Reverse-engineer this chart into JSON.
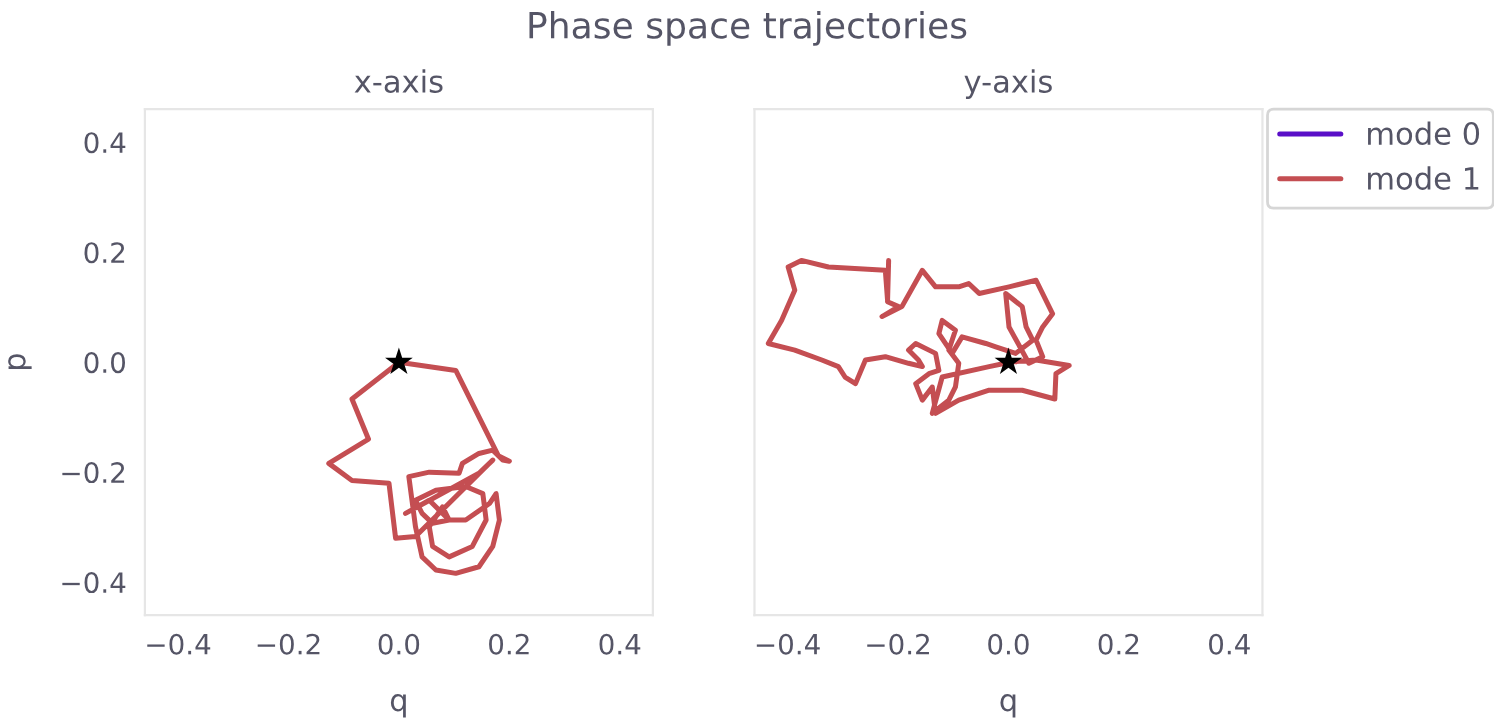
{
  "chart_data": [
    {
      "type": "line",
      "title": "x-axis",
      "xlabel": "q",
      "ylabel": "p",
      "annotations": [
        "Phase space trajectories"
      ],
      "grid": false,
      "xlim": [
        -0.46,
        0.46
      ],
      "ylim": [
        -0.46,
        0.46
      ],
      "xticks": [
        {
          "value": -0.4,
          "label": "−0.4"
        },
        {
          "value": -0.2,
          "label": "−0.2"
        },
        {
          "value": 0,
          "label": "0.0"
        },
        {
          "value": 0.2,
          "label": "0.2"
        },
        {
          "value": 0.4,
          "label": "0.4"
        }
      ],
      "yticks": [
        {
          "value": -0.4,
          "label": "−0.4"
        },
        {
          "value": -0.2,
          "label": "−0.2"
        },
        {
          "value": 0,
          "label": "0.0"
        },
        {
          "value": 0.2,
          "label": "0.2"
        },
        {
          "value": 0.4,
          "label": "0.4"
        }
      ],
      "series": [
        {
          "color": "#c44e52",
          "x": [
            0,
            0.103,
            0.18,
            0.2,
            0.188,
            0.17,
            0.145,
            0.115,
            0.109,
            0.055,
            0.018,
            0.03,
            0.042,
            0.067,
            0.103,
            0.145,
            0.17,
            0.182,
            0.176,
            0.164,
            0.121,
            0.091,
            0.061,
            0.042,
            0.03,
            0.067,
            0.121,
            0.152,
            0.158,
            0.133,
            0.091,
            0.061,
            0.055,
            0.079,
            0.091,
            0.055,
            0.012,
            0.145,
            0.17,
            0.03,
            -0.006,
            -0.018,
            -0.085,
            -0.127,
            -0.055,
            -0.085,
            -0.006
          ],
          "values": [
            0,
            -0.015,
            -0.17,
            -0.18,
            -0.178,
            -0.16,
            -0.166,
            -0.184,
            -0.202,
            -0.2,
            -0.208,
            -0.299,
            -0.354,
            -0.378,
            -0.384,
            -0.372,
            -0.335,
            -0.287,
            -0.239,
            -0.257,
            -0.287,
            -0.287,
            -0.293,
            -0.275,
            -0.251,
            -0.233,
            -0.226,
            -0.239,
            -0.287,
            -0.335,
            -0.354,
            -0.335,
            -0.299,
            -0.263,
            -0.287,
            -0.251,
            -0.275,
            -0.202,
            -0.178,
            -0.317,
            -0.32,
            -0.22,
            -0.215,
            -0.184,
            -0.14,
            -0.067,
            -0.005
          ]
        },
        {
          "type": "scatter",
          "color": "#000000",
          "marker": "star",
          "x": [
            0
          ],
          "values": [
            0
          ]
        }
      ]
    },
    {
      "type": "line",
      "title": "y-axis",
      "xlabel": "q",
      "legend": "right",
      "grid": false,
      "tick_labels": "x",
      "xlim": [
        -0.46,
        0.46
      ],
      "ylim": [
        -0.46,
        0.46
      ],
      "xticks": [
        {
          "value": -0.4,
          "label": "−0.4"
        },
        {
          "value": -0.2,
          "label": "−0.2"
        },
        {
          "value": 0,
          "label": "0.0"
        },
        {
          "value": 0.2,
          "label": "0.2"
        },
        {
          "value": 0.4,
          "label": "0.4"
        }
      ],
      "yticks": [
        {
          "value": -0.4,
          "label": null
        },
        {
          "value": -0.2,
          "label": null
        },
        {
          "value": 0,
          "label": null
        },
        {
          "value": 0.2,
          "label": null
        },
        {
          "value": 0.4,
          "label": null
        }
      ],
      "series": [
        {
          "name": "mode 0",
          "color": "#5a0fc8",
          "values": [
            null
          ]
        },
        {
          "name": "mode 1",
          "color": "#c44e52",
          "x": [
            0,
            0.05,
            0.11,
            0.086,
            0.084,
            0.025,
            -0.035,
            -0.09,
            -0.132,
            -0.138,
            -0.156,
            -0.168,
            -0.144,
            -0.126,
            -0.132,
            -0.168,
            -0.181,
            -0.163,
            -0.156,
            -0.181,
            -0.223,
            -0.259,
            -0.277,
            -0.296,
            -0.308,
            -0.338,
            -0.387,
            -0.435,
            -0.411,
            -0.387,
            -0.399,
            -0.375,
            -0.326,
            -0.223,
            -0.219,
            -0.217,
            -0.219,
            -0.199,
            -0.229,
            -0.193,
            -0.156,
            -0.132,
            -0.09,
            -0.072,
            -0.053,
            0.001,
            0.05,
            0.08,
            0.062,
            0.05,
            0.062,
            0.037,
            0.001,
            -0.005,
            0.025,
            0.032,
            0.044,
            0.013,
            -0.023,
            -0.041,
            -0.084,
            -0.102,
            -0.126,
            -0.12,
            -0.096,
            -0.108,
            -0.09,
            -0.096,
            -0.108,
            -0.138,
            -0.12,
            -0.035,
            -0.006
          ],
          "values": [
            0,
            0.004,
            -0.006,
            -0.021,
            -0.067,
            -0.051,
            -0.051,
            -0.069,
            -0.093,
            -0.045,
            -0.069,
            -0.039,
            -0.021,
            -0.015,
            0.016,
            0.034,
            0.022,
            0.004,
            -0.008,
            -0.002,
            0.01,
            0.004,
            -0.039,
            -0.027,
            -0.008,
            0.004,
            0.022,
            0.034,
            0.076,
            0.131,
            0.173,
            0.185,
            0.173,
            0.167,
            0.113,
            0.185,
            0.11,
            0.101,
            0.083,
            0.101,
            0.167,
            0.137,
            0.137,
            0.143,
            0.125,
            0.137,
            0.149,
            0.088,
            0.064,
            0.04,
            0.01,
            -0.002,
            0.064,
            0.125,
            0.101,
            0.064,
            0.04,
            0.016,
            0.028,
            0.034,
            0.046,
            0.016,
            0.052,
            0.076,
            0.058,
            0.022,
            -0.002,
            -0.045,
            -0.069,
            -0.093,
            -0.027,
            -0.008,
            -0.002
          ]
        },
        {
          "type": "scatter",
          "color": "#000000",
          "marker": "star",
          "x": [
            0
          ],
          "values": [
            0
          ]
        }
      ]
    }
  ]
}
